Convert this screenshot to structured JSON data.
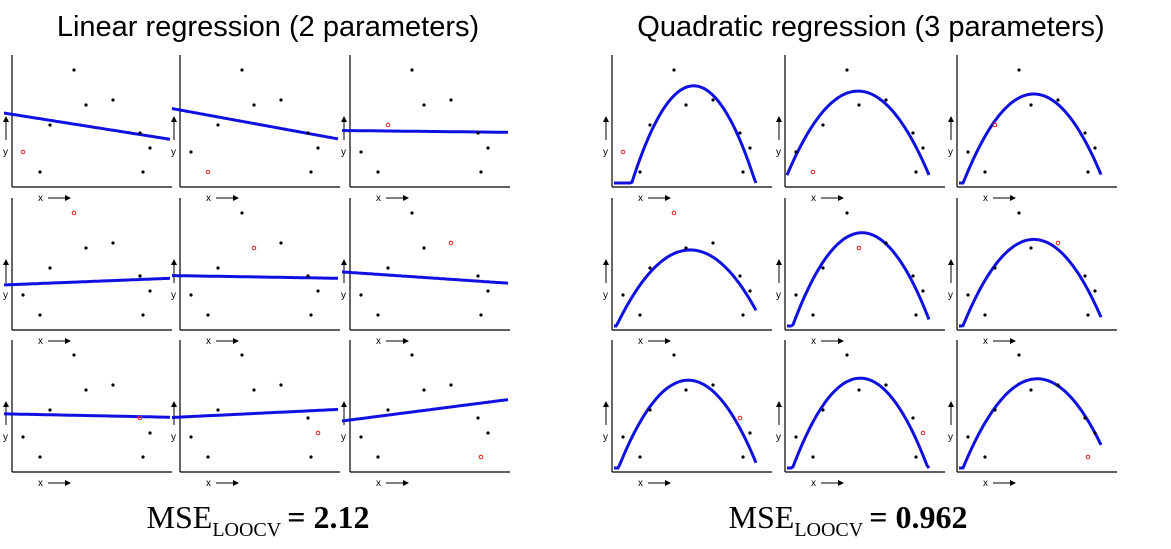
{
  "left": {
    "title": "Linear regression (2 parameters)",
    "mse_label": "MSE",
    "mse_subscript": "LOOCV",
    "mse_value": "= 2.12"
  },
  "right": {
    "title": "Quadratic regression (3 parameters)",
    "mse_label": "MSE",
    "mse_subscript": "LOOCV",
    "mse_value": "= 0.962"
  },
  "panels": {
    "x_label": "x",
    "y_label": "y"
  }
}
